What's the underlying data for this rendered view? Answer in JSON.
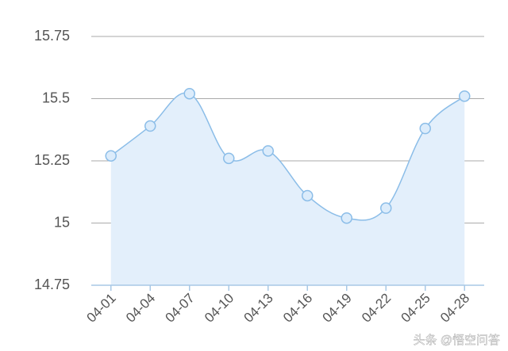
{
  "chart_data": {
    "type": "area",
    "categories": [
      "04-01",
      "04-04",
      "04-07",
      "04-10",
      "04-13",
      "04-16",
      "04-19",
      "04-22",
      "04-25",
      "04-28"
    ],
    "values": [
      15.27,
      15.39,
      15.52,
      15.26,
      15.29,
      15.11,
      15.02,
      15.06,
      15.38,
      15.51
    ],
    "color": "#8bbde8",
    "fill": "#e3effb",
    "ylim": [
      14.75,
      15.75
    ],
    "yticks": [
      14.75,
      15,
      15.25,
      15.5,
      15.75
    ],
    "grid": true,
    "watermark": "头条 @悟空问答"
  }
}
